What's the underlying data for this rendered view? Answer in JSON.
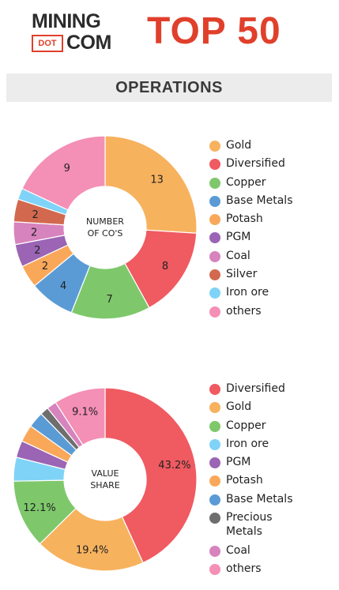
{
  "header": {
    "logo_line1": "MINING",
    "logo_dot": "DOT",
    "logo_com": "COM",
    "top_label": "TOP 50"
  },
  "section": {
    "title": "OPERATIONS"
  },
  "chart_data": [
    {
      "type": "pie",
      "donut": true,
      "center_label": [
        "NUMBER",
        "OF CO'S"
      ],
      "legend_placement": "right",
      "categories": [
        "Gold",
        "Diversified",
        "Copper",
        "Base Metals",
        "Potash",
        "PGM",
        "Coal",
        "Silver",
        "Iron ore",
        "others"
      ],
      "values": [
        13,
        8,
        7,
        4,
        2,
        2,
        2,
        2,
        1,
        9
      ],
      "data_labels": [
        "13",
        "8",
        "7",
        "4",
        "2",
        "2",
        "2",
        "2",
        "",
        "9"
      ],
      "colors": [
        "#f7b25e",
        "#f05a61",
        "#7ec86b",
        "#5b9bd5",
        "#f9a85a",
        "#9b64b4",
        "#d783bd",
        "#d2694f",
        "#7fd3f7",
        "#f48fb5"
      ]
    },
    {
      "type": "pie",
      "donut": true,
      "center_label": [
        "VALUE",
        "SHARE"
      ],
      "legend_placement": "right",
      "categories": [
        "Diversified",
        "Gold",
        "Copper",
        "Iron ore",
        "PGM",
        "Potash",
        "Base Metals",
        "Precious Metals",
        "Coal",
        "others"
      ],
      "values": [
        43.2,
        19.4,
        12.1,
        4.2,
        3.0,
        3.0,
        2.8,
        1.5,
        1.7,
        9.1
      ],
      "data_labels": [
        "43.2%",
        "19.4%",
        "12.1%",
        "",
        "",
        "",
        "",
        "",
        "",
        "9.1%"
      ],
      "colors": [
        "#f05a61",
        "#f7b25e",
        "#7ec86b",
        "#7fd3f7",
        "#9b64b4",
        "#f9a85a",
        "#5b9bd5",
        "#6e6e6e",
        "#d783bd",
        "#f48fb5"
      ]
    }
  ]
}
